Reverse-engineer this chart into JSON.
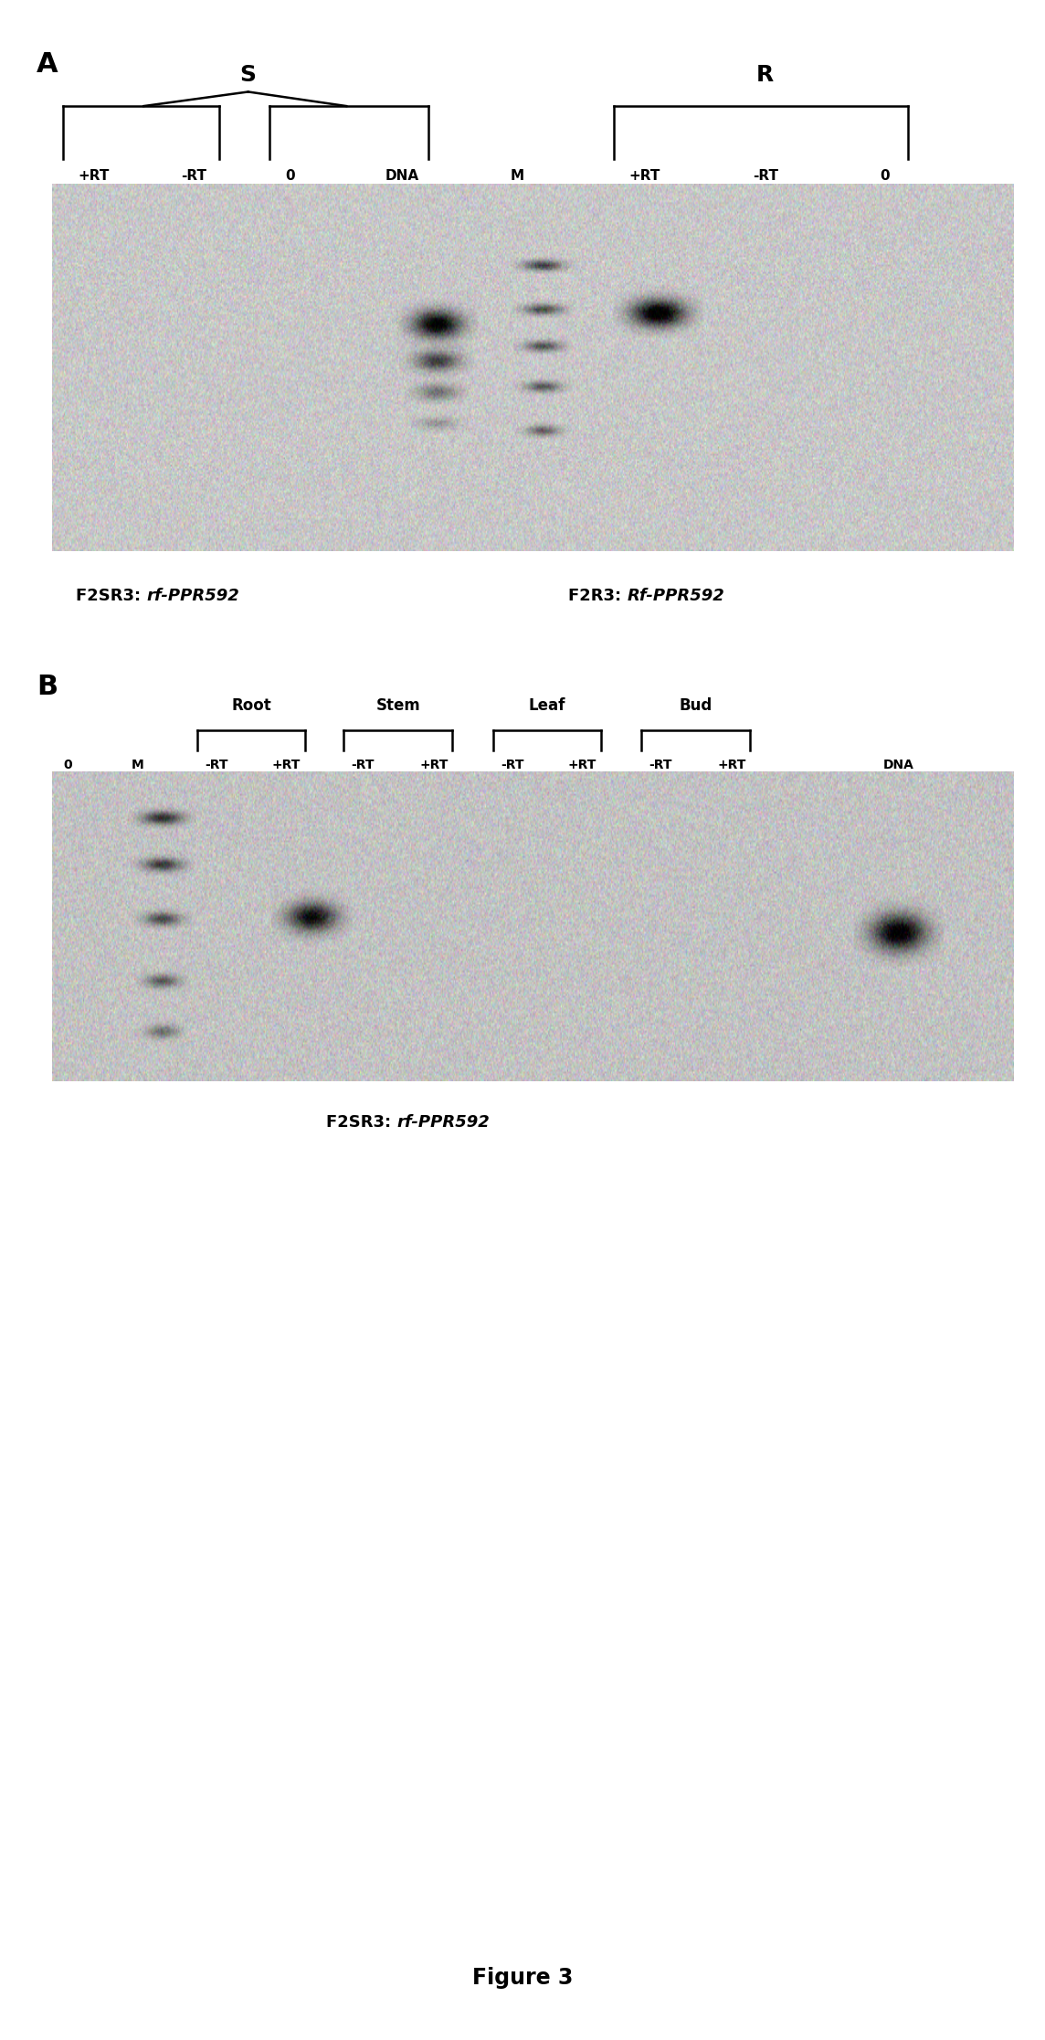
{
  "fig_width": 11.44,
  "fig_height": 22.32,
  "background_color": "#ffffff",
  "panel_A": {
    "label": "A",
    "S_label": "S",
    "R_label": "R",
    "lanes_A": [
      "+RT",
      "-RT",
      "0",
      "DNA",
      "M",
      "+RT",
      "-RT",
      "0"
    ],
    "caption_left_normal": "F2SR3: ",
    "caption_left_italic": "rf-PPR592",
    "caption_right_normal": "F2R3: ",
    "caption_right_italic": "Rf-PPR592"
  },
  "panel_B": {
    "label": "B",
    "tissue_labels": [
      "Root",
      "Stem",
      "Leaf",
      "Bud"
    ],
    "lanes_B": [
      "0",
      "M",
      "-RT",
      "+RT",
      "-RT",
      "+RT",
      "-RT",
      "+RT",
      "-RT",
      "+RT",
      "DNA"
    ],
    "caption_normal": "F2SR3: ",
    "caption_italic": "rf-PPR592"
  },
  "figure_label": "Figure 3"
}
